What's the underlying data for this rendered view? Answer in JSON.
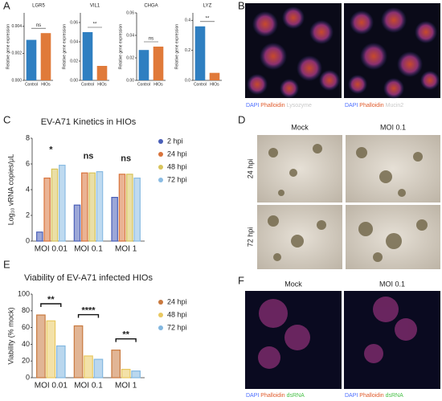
{
  "panel_letters": [
    "A",
    "B",
    "C",
    "D",
    "E",
    "F"
  ],
  "images": {
    "B": {
      "captions": [
        [
          "DAPI",
          "Phalloidin",
          "Lysozyme"
        ],
        [
          "DAPI",
          "Phalloidin",
          "Mucin2"
        ]
      ]
    },
    "D": {
      "columns": [
        "Mock",
        "MOI 0.1"
      ],
      "rows": [
        "24 hpi",
        "72 hpi"
      ]
    },
    "F": {
      "columns": [
        "Mock",
        "MOI 0.1"
      ],
      "captions": [
        [
          "DAPI",
          "Phalloidin",
          "dsRNA"
        ],
        [
          "DAPI",
          "Phalloidin",
          "dsRNA"
        ]
      ]
    }
  },
  "chart_data": [
    {
      "type": "bar",
      "title": "LGR5",
      "y_label": "Relative gene expression",
      "categories": [
        "Control",
        "HIOs"
      ],
      "values": [
        0.003,
        0.0035
      ],
      "colors": [
        "#2f7fc1",
        "#e07a3a"
      ],
      "ylim": [
        0,
        0.005
      ],
      "yticks": [
        {
          "value": 0,
          "label": "0.000"
        },
        {
          "value": 0.002,
          "label": "0.002"
        },
        {
          "value": 0.004,
          "label": "0.004"
        }
      ],
      "annotations": [
        "ns"
      ]
    },
    {
      "type": "bar",
      "title": "VIL1",
      "y_label": "Relative gene expression",
      "categories": [
        "Control",
        "HIOs"
      ],
      "values": [
        0.05,
        0.015
      ],
      "colors": [
        "#2f7fc1",
        "#e07a3a"
      ],
      "ylim": [
        0,
        0.07
      ],
      "yticks": [
        {
          "value": 0,
          "label": "0.00"
        },
        {
          "value": 0.02,
          "label": "0.02"
        },
        {
          "value": 0.04,
          "label": "0.04"
        },
        {
          "value": 0.06,
          "label": "0.06"
        }
      ],
      "annotations": [
        "**"
      ]
    },
    {
      "type": "bar",
      "title": "CHGA",
      "y_label": "Relative gene expression",
      "categories": [
        "Control",
        "HIOs"
      ],
      "values": [
        0.027,
        0.03
      ],
      "colors": [
        "#2f7fc1",
        "#e07a3a"
      ],
      "ylim": [
        0,
        0.06
      ],
      "yticks": [
        {
          "value": 0,
          "label": "0.00"
        },
        {
          "value": 0.02,
          "label": "0.02"
        },
        {
          "value": 0.04,
          "label": "0.04"
        },
        {
          "value": 0.06,
          "label": "0.06"
        }
      ],
      "annotations": [
        "ns"
      ]
    },
    {
      "type": "bar",
      "title": "LYZ",
      "y_label": "Relative gene expression",
      "categories": [
        "Control",
        "HIOs"
      ],
      "values": [
        0.36,
        0.05
      ],
      "colors": [
        "#2f7fc1",
        "#e07a3a"
      ],
      "ylim": [
        0,
        0.45
      ],
      "yticks": [
        {
          "value": 0,
          "label": "0.0"
        },
        0.2,
        0.4
      ],
      "annotations": [
        "**"
      ]
    },
    {
      "type": "bar",
      "title": "EV-A71 Kinetics in HIOs",
      "y_label": "Log₁₀ vRNA copies/μL",
      "categories": [
        "MOI 0.01",
        "MOI 0.1",
        "MOI 1"
      ],
      "series": [
        {
          "name": "2 hpi",
          "color": "#4a5fb8",
          "values": [
            0.7,
            2.8,
            3.4
          ]
        },
        {
          "name": "24 hpi",
          "color": "#d9743c",
          "values": [
            4.9,
            5.3,
            5.2
          ]
        },
        {
          "name": "48 hpi",
          "color": "#d8c45c",
          "values": [
            5.6,
            5.3,
            5.2
          ]
        },
        {
          "name": "72 hpi",
          "color": "#8bbce3",
          "values": [
            5.9,
            5.4,
            4.9
          ]
        }
      ],
      "ylim": [
        0,
        8
      ],
      "yticks": [
        0,
        2,
        4,
        6,
        8
      ],
      "legend": "right",
      "annotations": [
        "*",
        "ns",
        "ns"
      ]
    },
    {
      "type": "bar",
      "title": "Viability of EV-A71 infected HIOs",
      "y_label": "Viability (% mock)",
      "categories": [
        "MOI 0.01",
        "MOI 0.1",
        "MOI 1"
      ],
      "series": [
        {
          "name": "24 hpi",
          "color": "#c9793e",
          "values": [
            75,
            62,
            33
          ]
        },
        {
          "name": "48 hpi",
          "color": "#e9c860",
          "values": [
            68,
            26,
            10
          ]
        },
        {
          "name": "72 hpi",
          "color": "#82b7e0",
          "values": [
            38,
            22,
            8
          ]
        }
      ],
      "ylim": [
        0,
        100
      ],
      "yticks": [
        0,
        20,
        40,
        60,
        80,
        100
      ],
      "legend": "right",
      "annotations": [
        "**",
        "****",
        "**"
      ],
      "bracket": true
    }
  ]
}
